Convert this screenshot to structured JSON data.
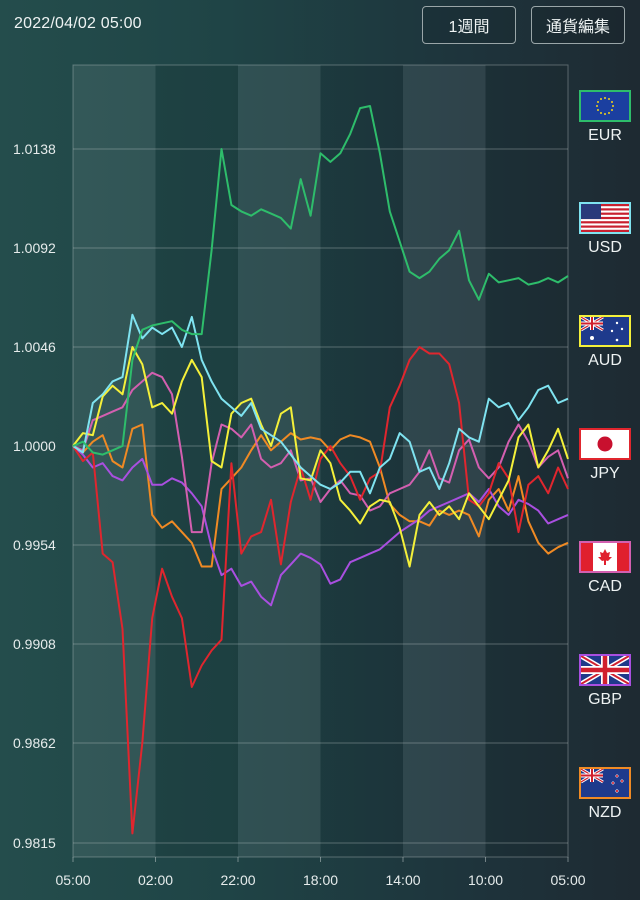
{
  "header": {
    "datetime": "2022/04/02 05:00",
    "period_button": "1週間",
    "edit_currencies_button": "通貨編集"
  },
  "legend": [
    {
      "code": "EUR",
      "color": "#2ebd6b",
      "flag": "eu-flag"
    },
    {
      "code": "USD",
      "color": "#7fe3f0",
      "flag": "us-flag"
    },
    {
      "code": "AUD",
      "color": "#f4f03a",
      "flag": "au-flag"
    },
    {
      "code": "JPY",
      "color": "#e0262e",
      "flag": "jp-flag"
    },
    {
      "code": "CAD",
      "color": "#d35fb0",
      "flag": "ca-flag"
    },
    {
      "code": "GBP",
      "color": "#a94fe0",
      "flag": "gb-flag"
    },
    {
      "code": "NZD",
      "color": "#f08a24",
      "flag": "nz-flag"
    }
  ],
  "chart_data": {
    "type": "line",
    "title": "",
    "xlabel": "",
    "ylabel": "",
    "ylim": [
      0.9815,
      1.0175
    ],
    "x_tick_labels": [
      "05:00",
      "02:00",
      "22:00",
      "18:00",
      "14:00",
      "10:00",
      "05:00"
    ],
    "y_tick_labels": [
      "1.0138",
      "1.0092",
      "1.0046",
      "1.0000",
      "0.9954",
      "0.9908",
      "0.9862",
      "0.9815"
    ],
    "y_ticks": [
      1.0138,
      1.0092,
      1.0046,
      1.0,
      0.9954,
      0.9908,
      0.9862,
      0.9815
    ],
    "grid": true,
    "bands": "alternating shaded vertical bands between x ticks",
    "legend_position": "right",
    "points_per_series": 51,
    "series": [
      {
        "name": "EUR",
        "color": "#2ebd6b",
        "values": [
          1.0,
          1.0002,
          0.9997,
          0.9996,
          0.9998,
          1.0,
          1.004,
          1.0054,
          1.0056,
          1.0057,
          1.0058,
          1.0054,
          1.0052,
          1.0052,
          1.0091,
          1.0138,
          1.0112,
          1.0109,
          1.0107,
          1.011,
          1.0108,
          1.0106,
          1.0101,
          1.0124,
          1.0107,
          1.0136,
          1.0132,
          1.0136,
          1.0145,
          1.0157,
          1.0158,
          1.0136,
          1.0109,
          1.0095,
          1.0081,
          1.0078,
          1.0081,
          1.0087,
          1.0091,
          1.01,
          1.0077,
          1.0068,
          1.008,
          1.0076,
          1.0077,
          1.0078,
          1.0075,
          1.0076,
          1.0078,
          1.0076,
          1.0079
        ]
      },
      {
        "name": "USD",
        "color": "#7fe3f0",
        "values": [
          1.0,
          0.9997,
          1.002,
          1.0024,
          1.003,
          1.0032,
          1.0061,
          1.005,
          1.0055,
          1.0052,
          1.0055,
          1.0046,
          1.006,
          1.004,
          1.003,
          1.0022,
          1.0018,
          1.0014,
          1.002,
          1.0008,
          1.0005,
          1.0002,
          0.9996,
          0.999,
          0.9986,
          0.9982,
          0.998,
          0.9983,
          0.9988,
          0.9988,
          0.9978,
          0.999,
          0.9994,
          1.0006,
          1.0002,
          0.9988,
          0.999,
          0.998,
          0.9992,
          1.0008,
          1.0004,
          1.0002,
          1.0022,
          1.0018,
          1.002,
          1.0012,
          1.0018,
          1.0026,
          1.0028,
          1.002,
          1.0022
        ]
      },
      {
        "name": "AUD",
        "color": "#f4f03a",
        "values": [
          1.0,
          1.0006,
          1.0005,
          1.0023,
          1.0028,
          1.0024,
          1.0046,
          1.0038,
          1.0018,
          1.002,
          1.0015,
          1.003,
          1.004,
          1.0032,
          0.9993,
          0.999,
          1.0015,
          1.002,
          1.0022,
          1.001,
          1.0,
          1.0015,
          1.0018,
          0.9985,
          0.9984,
          0.9998,
          0.9992,
          0.9975,
          0.997,
          0.9964,
          0.9972,
          0.9975,
          0.9974,
          0.9962,
          0.9944,
          0.9968,
          0.9974,
          0.9968,
          0.9972,
          0.9966,
          0.9978,
          0.9972,
          0.9966,
          0.9975,
          0.9984,
          1.0004,
          1.001,
          0.999,
          0.9998,
          1.0008,
          0.9994
        ]
      },
      {
        "name": "JPY",
        "color": "#e0262e",
        "values": [
          1.0,
          0.9993,
          0.9997,
          0.995,
          0.9946,
          0.9915,
          0.982,
          0.9862,
          0.992,
          0.9943,
          0.993,
          0.992,
          0.9888,
          0.9898,
          0.9905,
          0.991,
          0.9992,
          0.995,
          0.9958,
          0.996,
          0.9975,
          0.9945,
          0.9974,
          0.999,
          0.9975,
          0.9994,
          1.0,
          0.9992,
          0.9986,
          0.9975,
          0.9985,
          0.9988,
          1.0018,
          1.0028,
          1.004,
          1.0046,
          1.0043,
          1.0043,
          1.0038,
          1.002,
          0.9975,
          0.9972,
          0.9978,
          0.9992,
          0.9985,
          0.996,
          0.9982,
          0.9986,
          0.9978,
          0.999,
          0.998
        ]
      },
      {
        "name": "CAD",
        "color": "#d35fb0",
        "values": [
          1.0,
          0.9998,
          1.0012,
          1.0014,
          1.0016,
          1.0018,
          1.0026,
          1.003,
          1.0034,
          1.0032,
          1.0024,
          0.9995,
          0.996,
          0.996,
          0.9992,
          1.001,
          1.0008,
          1.0004,
          1.001,
          0.9994,
          0.999,
          0.9992,
          0.9998,
          0.9984,
          0.9985,
          0.9974,
          0.998,
          0.9984,
          0.9978,
          0.9977,
          0.997,
          0.9972,
          0.9978,
          0.998,
          0.9982,
          0.9988,
          0.9998,
          0.9985,
          0.9983,
          0.9998,
          1.0003,
          0.999,
          0.9985,
          0.999,
          1.0002,
          1.001,
          1.0002,
          0.999,
          0.9995,
          0.9998,
          0.9985
        ]
      },
      {
        "name": "GBP",
        "color": "#a94fe0",
        "values": [
          1.0,
          0.9996,
          0.999,
          0.9992,
          0.9986,
          0.9984,
          0.999,
          0.9994,
          0.9982,
          0.9982,
          0.9985,
          0.9983,
          0.9978,
          0.9972,
          0.9953,
          0.994,
          0.9943,
          0.9935,
          0.9937,
          0.993,
          0.9926,
          0.994,
          0.9945,
          0.995,
          0.9948,
          0.9945,
          0.9936,
          0.9938,
          0.9946,
          0.9948,
          0.995,
          0.9952,
          0.9956,
          0.996,
          0.9963,
          0.9966,
          0.997,
          0.9972,
          0.9974,
          0.9976,
          0.9978,
          0.9974,
          0.998,
          0.9972,
          0.9968,
          0.9975,
          0.9973,
          0.997,
          0.9964,
          0.9966,
          0.9968
        ]
      },
      {
        "name": "NZD",
        "color": "#f08a24",
        "values": [
          1.0,
          0.9997,
          1.0002,
          1.0005,
          0.9993,
          0.999,
          1.0008,
          1.001,
          0.9968,
          0.9962,
          0.9965,
          0.996,
          0.9955,
          0.9944,
          0.9944,
          0.998,
          0.9985,
          0.999,
          0.9998,
          1.0005,
          0.9998,
          1.0002,
          1.0006,
          1.0003,
          1.0004,
          1.0003,
          0.9998,
          1.0003,
          1.0005,
          1.0004,
          1.0002,
          0.999,
          0.9973,
          0.9968,
          0.9965,
          0.9965,
          0.9963,
          0.997,
          0.9968,
          0.997,
          0.9968,
          0.9958,
          0.9975,
          0.998,
          0.997,
          0.9986,
          0.9965,
          0.9955,
          0.995,
          0.9953,
          0.9955
        ]
      }
    ]
  }
}
